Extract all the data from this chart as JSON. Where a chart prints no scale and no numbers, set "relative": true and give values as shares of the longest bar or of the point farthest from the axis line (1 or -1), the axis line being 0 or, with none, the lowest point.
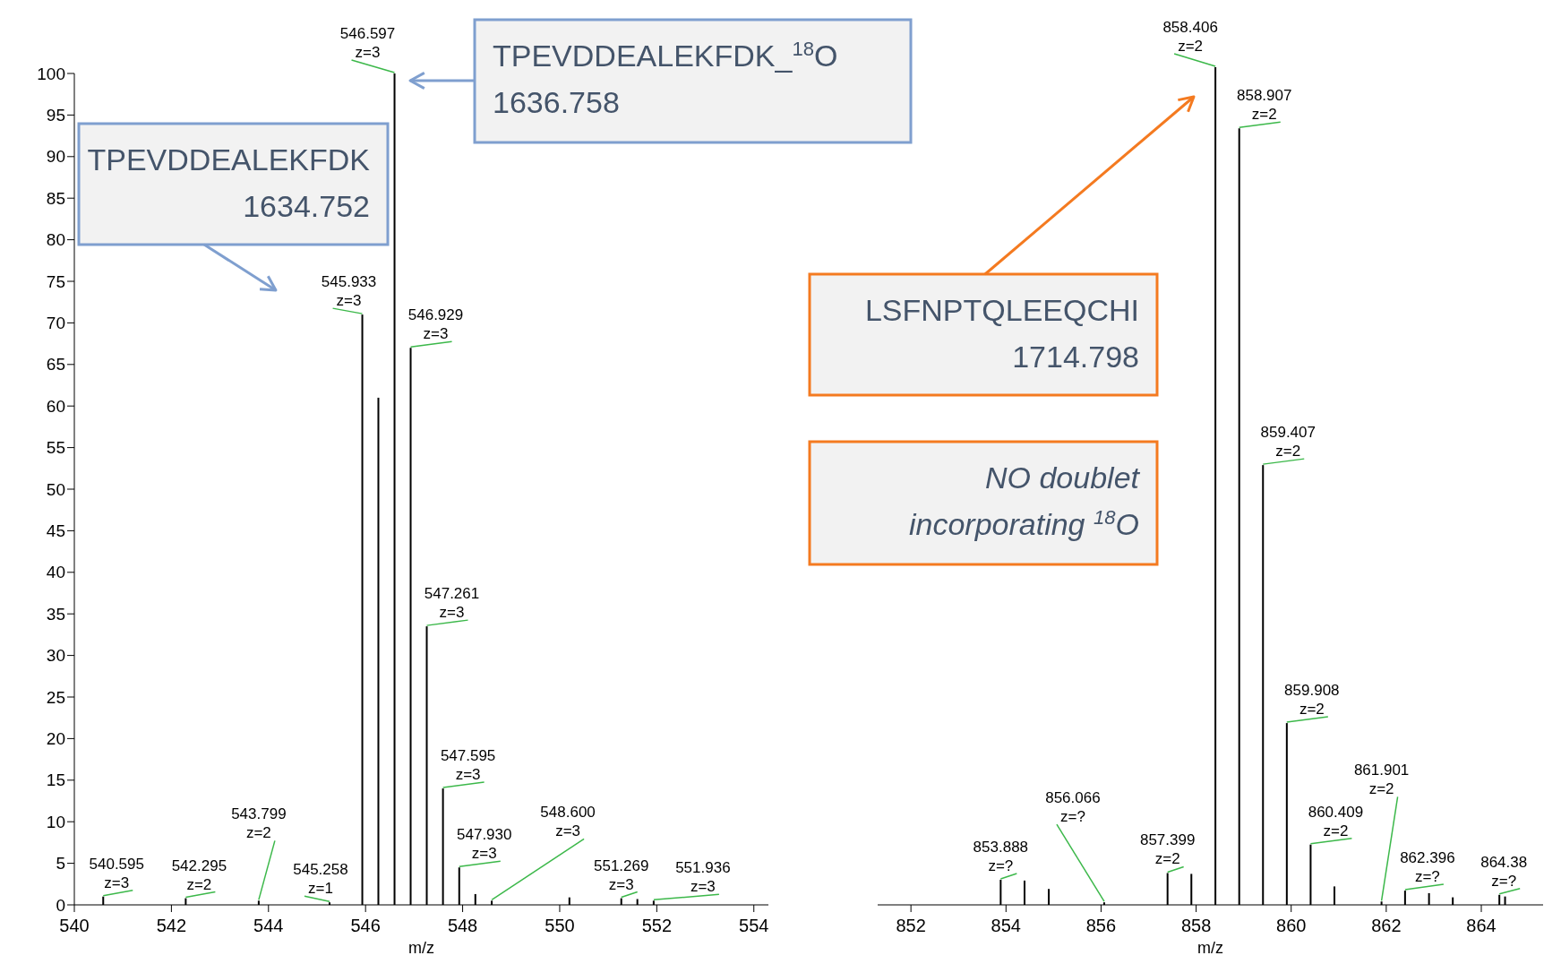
{
  "chart_data": [
    {
      "type": "bar",
      "xlabel": "m/z",
      "color": "#000000",
      "x": [
        540.595,
        542.295,
        543.799,
        545.258,
        545.933,
        546.264,
        546.597,
        546.929,
        547.261,
        547.595,
        547.93,
        548.262,
        548.6,
        550.2,
        551.269,
        551.6,
        551.936
      ],
      "values": [
        1,
        0.8,
        0.5,
        0.3,
        71,
        61,
        100,
        67,
        33.5,
        14,
        4.5,
        1.3,
        0.5,
        0.9,
        0.8,
        0.7,
        0.5
      ],
      "xlim": [
        540,
        554.3
      ],
      "xticks": [
        540,
        542,
        544,
        546,
        548,
        550,
        552,
        554
      ],
      "ylim": [
        0,
        100
      ],
      "yticks": [
        0,
        5,
        10,
        15,
        20,
        25,
        30,
        35,
        40,
        45,
        50,
        55,
        60,
        65,
        70,
        75,
        80,
        85,
        90,
        95,
        100
      ],
      "annotations": [
        "TPEVDDEALEKFDK_$^{18}$O\n1636.758",
        "TPEVDDEALEKFDK\n1634.752",
        {
          "text": "540.595\nz=3",
          "x": 540.595,
          "y": 1
        },
        {
          "text": "542.295\nz=2",
          "x": 542.295,
          "y": 0.8
        },
        {
          "text": "543.799\nz=2",
          "x": 543.799,
          "y": 0.5
        },
        {
          "text": "545.258\nz=1",
          "x": 545.258,
          "y": 0.3
        },
        {
          "text": "545.933\nz=3",
          "x": 545.933,
          "y": 71
        },
        {
          "text": "546.597\nz=3",
          "x": 546.597,
          "y": 100
        },
        {
          "text": "546.929\nz=3",
          "x": 546.929,
          "y": 67
        },
        {
          "text": "547.261\nz=3",
          "x": 547.261,
          "y": 33.5
        },
        {
          "text": "547.595\nz=3",
          "x": 547.595,
          "y": 14
        },
        {
          "text": "547.930\nz=3",
          "x": 547.93,
          "y": 4.5
        },
        {
          "text": "548.600\nz=3",
          "x": 548.6,
          "y": 0.5
        },
        {
          "text": "551.269\nz=3",
          "x": 551.269,
          "y": 0.8
        },
        {
          "text": "551.936\nz=3",
          "x": 551.936,
          "y": 0.5
        }
      ]
    },
    {
      "type": "bar",
      "xlabel": "m/z",
      "color": "#000000",
      "relative": true,
      "tick_labels": "x",
      "x": [
        853.888,
        854.39,
        854.9,
        856.066,
        857.399,
        857.9,
        858.406,
        858.907,
        859.407,
        859.908,
        860.409,
        860.91,
        861.901,
        862.396,
        862.9,
        863.4,
        864.38,
        864.5
      ],
      "values": [
        0.03,
        0.029,
        0.019,
        0.003,
        0.038,
        0.037,
        1,
        0.927,
        0.525,
        0.217,
        0.072,
        0.022,
        0.004,
        0.017,
        0.014,
        0.009,
        0.012,
        0.01
      ],
      "xlim": [
        851.3,
        865.3
      ],
      "xticks": [
        852,
        854,
        856,
        858,
        860,
        862,
        864
      ],
      "annotations": [
        "LSFNPTQLEEQCHI\n1714.798",
        "NO doublet\nincorporating $^{18}$O",
        {
          "text": "853.888\nz=?",
          "x": 853.888,
          "y": 0.03
        },
        {
          "text": "856.066\nz=?",
          "x": 856.066,
          "y": 0.003
        },
        {
          "text": "857.399\nz=2",
          "x": 857.399,
          "y": 0.038
        },
        {
          "text": "858.406\nz=2",
          "x": 858.406,
          "y": 1
        },
        {
          "text": "858.907\nz=2",
          "x": 858.907,
          "y": 0.927
        },
        {
          "text": "859.407\nz=2",
          "x": 859.407,
          "y": 0.525
        },
        {
          "text": "859.908\nz=2",
          "x": 859.908,
          "y": 0.217
        },
        {
          "text": "860.409\nz=2",
          "x": 860.409,
          "y": 0.072
        },
        {
          "text": "861.901\nz=2",
          "x": 861.901,
          "y": 0.004
        },
        {
          "text": "862.396\nz=?",
          "x": 862.396,
          "y": 0.017
        },
        {
          "text": "864.38\nz=?",
          "x": 864.38,
          "y": 0.012
        }
      ]
    }
  ]
}
